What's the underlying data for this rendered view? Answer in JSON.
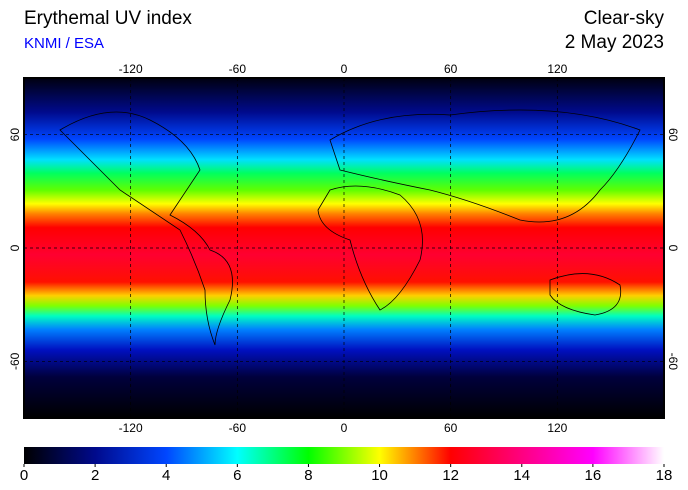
{
  "header": {
    "title": "Erythemal UV index",
    "credit": "KNMI / ESA",
    "condition": "Clear-sky",
    "date": "2 May 2023"
  },
  "chart_data": {
    "type": "map",
    "xlim": [
      -180,
      180
    ],
    "ylim": [
      -90,
      90
    ],
    "xticks": [
      -120,
      -60,
      0,
      60,
      120
    ],
    "yticks": [
      -60,
      0,
      60
    ],
    "grid": true,
    "colorbar": {
      "lim": [
        0,
        18
      ],
      "ticks": [
        0,
        2,
        4,
        6,
        8,
        10,
        12,
        14,
        16,
        18
      ],
      "colors": [
        "#000000",
        "#000a8c",
        "#0046ff",
        "#00ffff",
        "#00ff00",
        "#ffff00",
        "#ff0000",
        "#ff0080",
        "#ff00ff",
        "#ffffff"
      ]
    }
  }
}
